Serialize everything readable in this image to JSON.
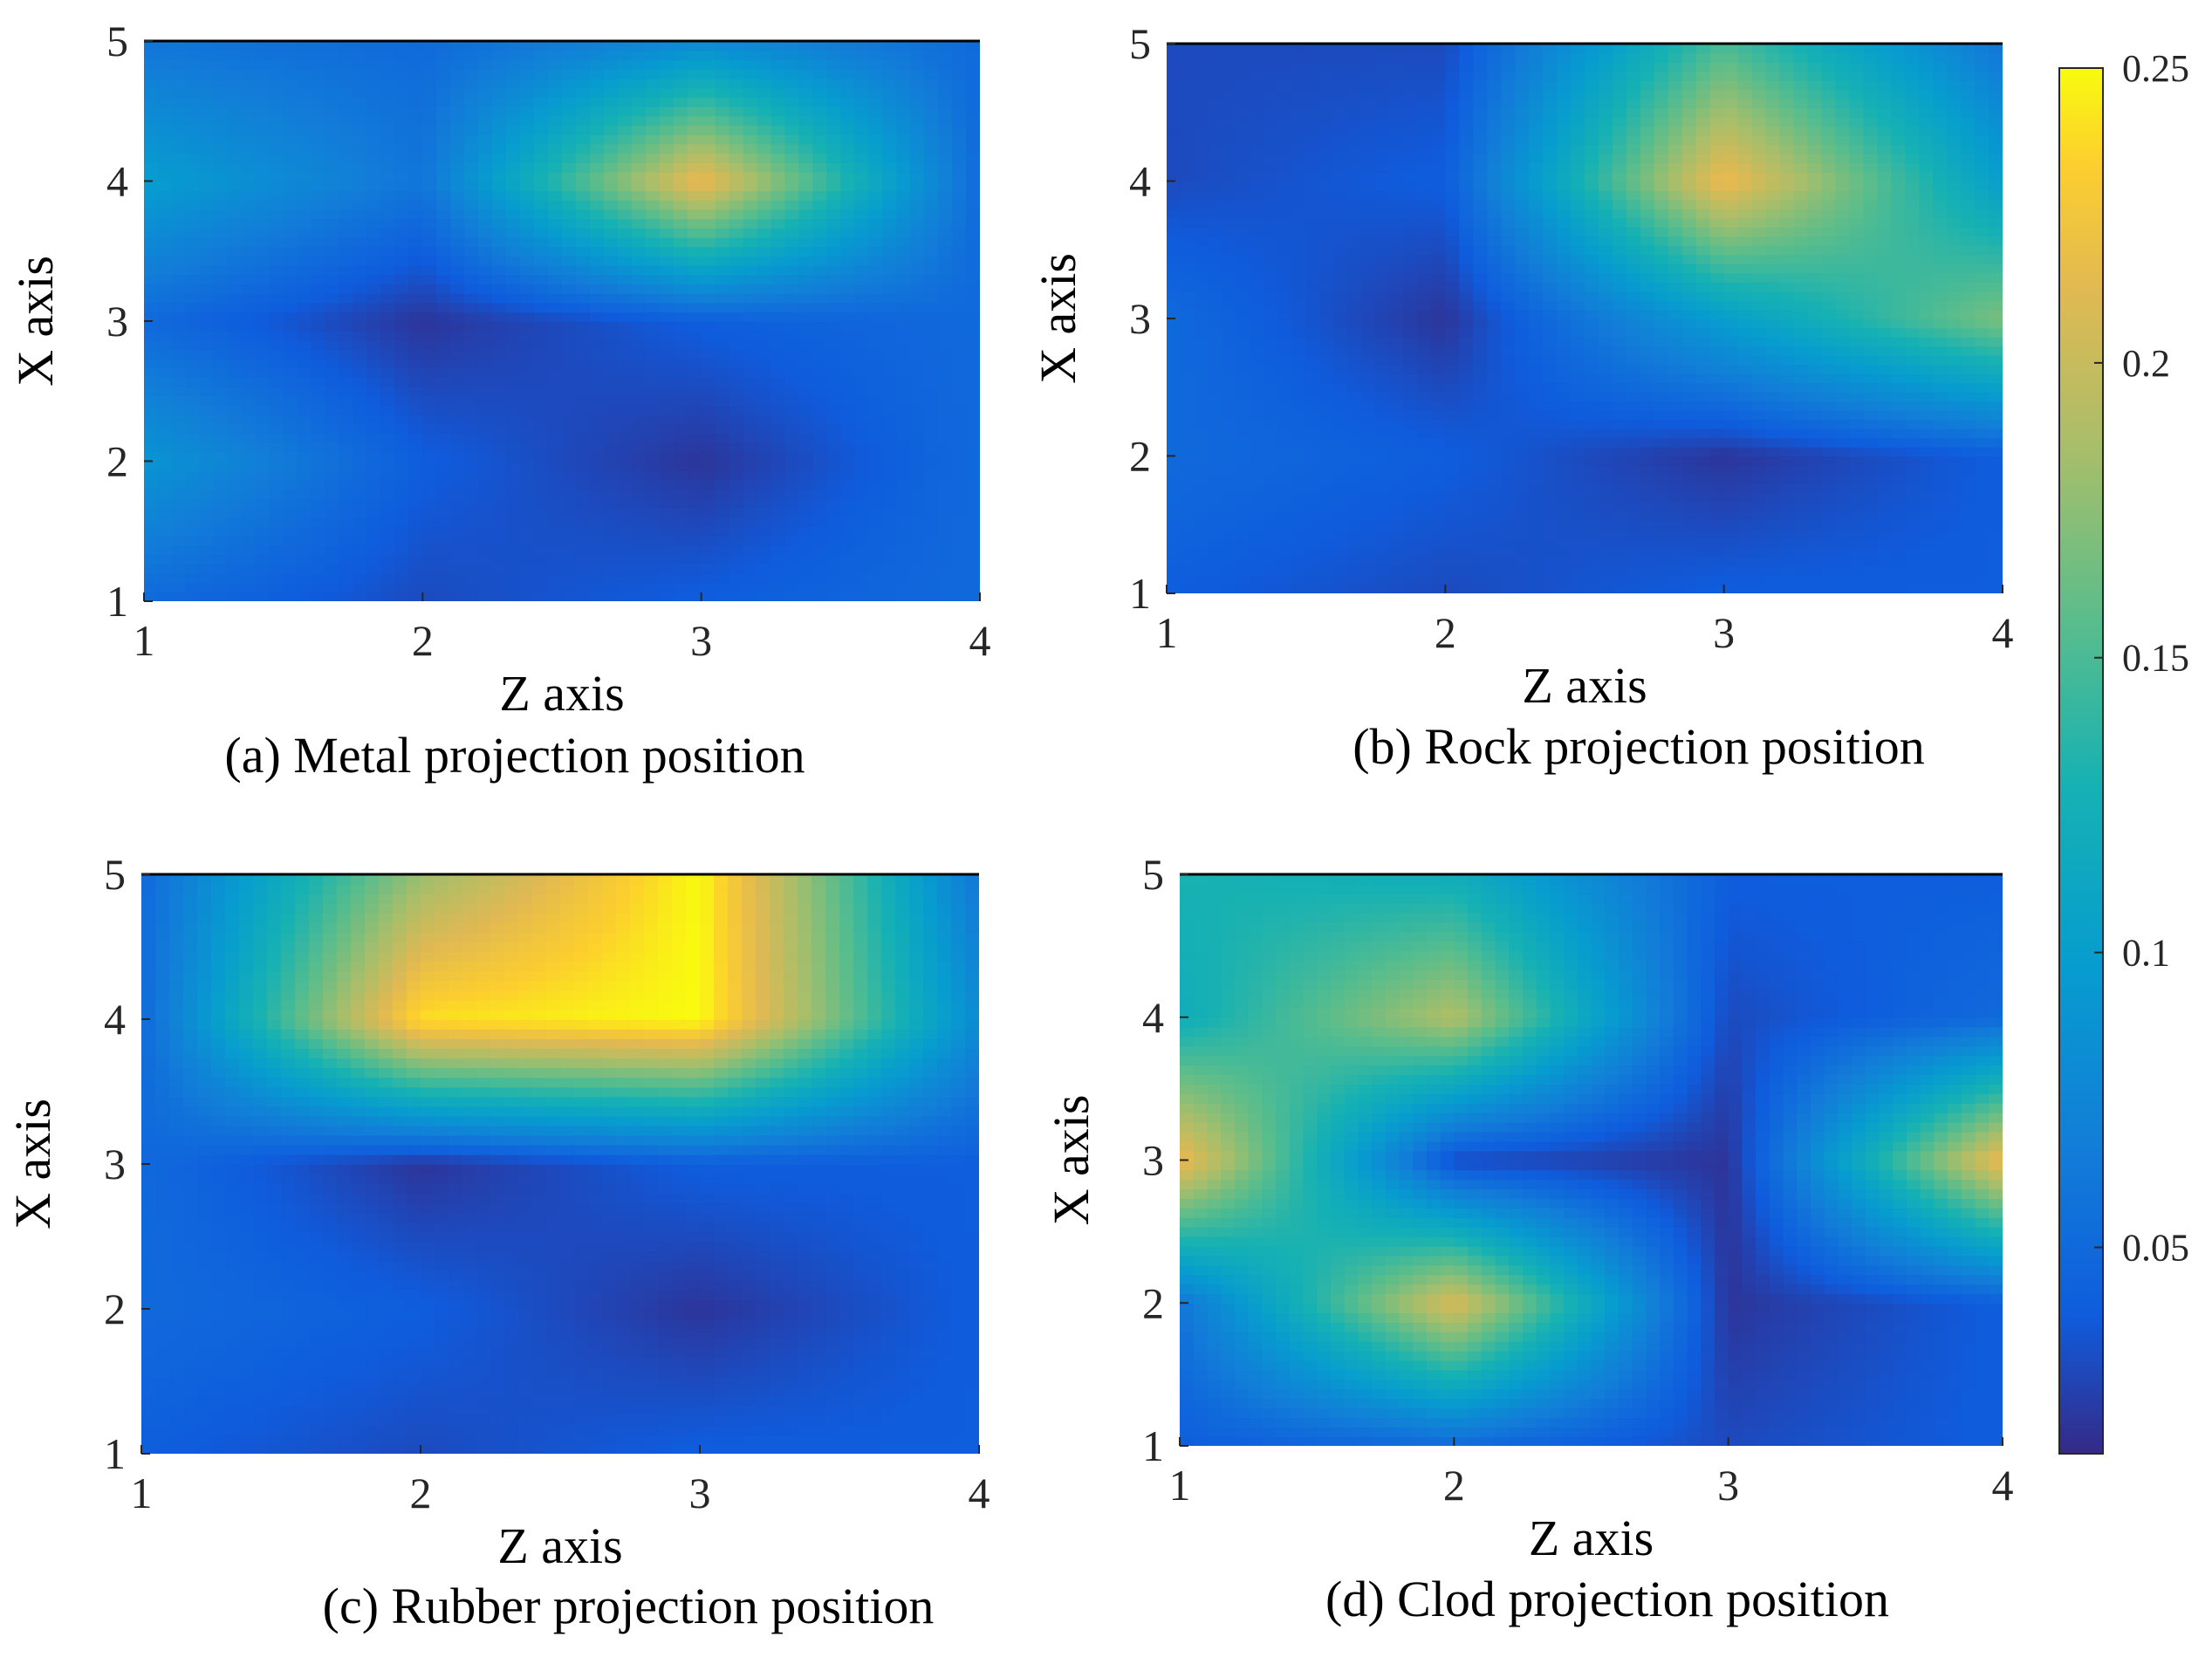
{
  "chart_data": [
    {
      "type": "heatmap",
      "id": "a",
      "caption": "(a) Metal projection position",
      "xlabel": "Z axis",
      "ylabel": "X axis",
      "x": [
        1,
        2,
        3,
        4
      ],
      "y": [
        1,
        2,
        3,
        4,
        5
      ],
      "xticks": [
        "1",
        "2",
        "3",
        "4"
      ],
      "yticks": [
        "1",
        "2",
        "3",
        "4",
        "5"
      ],
      "values": [
        [
          0.05,
          0.03,
          0.04,
          0.05
        ],
        [
          0.09,
          0.04,
          0.02,
          0.05
        ],
        [
          0.05,
          0.02,
          0.04,
          0.05
        ],
        [
          0.1,
          0.06,
          0.22,
          0.05
        ],
        [
          0.06,
          0.05,
          0.08,
          0.05
        ]
      ]
    },
    {
      "type": "heatmap",
      "id": "b",
      "caption": "(b) Rock projection position",
      "xlabel": "Z axis",
      "ylabel": "X axis",
      "x": [
        1,
        2,
        3,
        4
      ],
      "y": [
        1,
        2,
        3,
        4,
        5
      ],
      "xticks": [
        "1",
        "2",
        "3",
        "4"
      ],
      "yticks": [
        "1",
        "2",
        "3",
        "4",
        "5"
      ],
      "values": [
        [
          0.04,
          0.03,
          0.04,
          0.04
        ],
        [
          0.05,
          0.04,
          0.02,
          0.04
        ],
        [
          0.05,
          0.02,
          0.1,
          0.17
        ],
        [
          0.03,
          0.04,
          0.22,
          0.1
        ],
        [
          0.03,
          0.03,
          0.15,
          0.06
        ]
      ]
    },
    {
      "type": "heatmap",
      "id": "c",
      "caption": "(c) Rubber projection position",
      "xlabel": "Z axis",
      "ylabel": "X axis",
      "x": [
        1,
        2,
        3,
        4
      ],
      "y": [
        1,
        2,
        3,
        4,
        5
      ],
      "xticks": [
        "1",
        "2",
        "3",
        "4"
      ],
      "yticks": [
        "1",
        "2",
        "3",
        "4",
        "5"
      ],
      "values": [
        [
          0.04,
          0.03,
          0.04,
          0.04
        ],
        [
          0.05,
          0.04,
          0.02,
          0.04
        ],
        [
          0.05,
          0.02,
          0.04,
          0.04
        ],
        [
          0.05,
          0.24,
          0.25,
          0.08
        ],
        [
          0.05,
          0.18,
          0.25,
          0.06
        ]
      ]
    },
    {
      "type": "heatmap",
      "id": "d",
      "caption": "(d) Clod projection position",
      "xlabel": "Z axis",
      "ylabel": "X axis",
      "x": [
        1,
        2,
        3,
        4
      ],
      "y": [
        1,
        2,
        3,
        4,
        5
      ],
      "xticks": [
        "1",
        "2",
        "3",
        "4"
      ],
      "yticks": [
        "1",
        "2",
        "3",
        "4",
        "5"
      ],
      "values": [
        [
          0.04,
          0.05,
          0.03,
          0.04
        ],
        [
          0.06,
          0.21,
          0.02,
          0.04
        ],
        [
          0.22,
          0.03,
          0.02,
          0.22
        ],
        [
          0.12,
          0.19,
          0.03,
          0.05
        ],
        [
          0.13,
          0.12,
          0.04,
          0.04
        ]
      ]
    }
  ],
  "colorbar": {
    "min": 0.015,
    "max": 0.25,
    "ticks": [
      0.05,
      0.1,
      0.15,
      0.2,
      0.25
    ],
    "tick_labels": [
      "0.05",
      "0.1",
      "0.15",
      "0.2",
      "0.25"
    ]
  }
}
